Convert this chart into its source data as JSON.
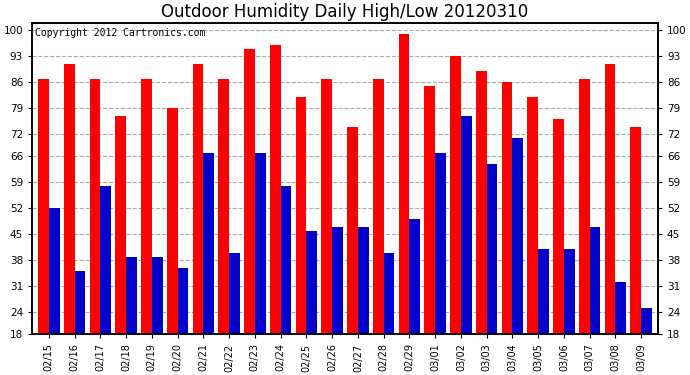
{
  "title": "Outdoor Humidity Daily High/Low 20120310",
  "copyright": "Copyright 2012 Cartronics.com",
  "dates": [
    "02/15",
    "02/16",
    "02/17",
    "02/18",
    "02/19",
    "02/20",
    "02/21",
    "02/22",
    "02/23",
    "02/24",
    "02/25",
    "02/26",
    "02/27",
    "02/28",
    "02/29",
    "03/01",
    "03/02",
    "03/03",
    "03/04",
    "03/05",
    "03/06",
    "03/07",
    "03/08",
    "03/09"
  ],
  "highs": [
    87,
    91,
    87,
    77,
    87,
    79,
    91,
    87,
    95,
    96,
    82,
    87,
    74,
    87,
    99,
    85,
    93,
    89,
    86,
    82,
    76,
    87,
    91,
    74
  ],
  "lows": [
    52,
    35,
    58,
    39,
    39,
    36,
    67,
    40,
    67,
    58,
    46,
    47,
    47,
    40,
    49,
    67,
    77,
    64,
    71,
    41,
    41,
    47,
    32,
    25
  ],
  "bar_color_high": "#ff0000",
  "bar_color_low": "#0000cc",
  "background_color": "#ffffff",
  "grid_color": "#aaaaaa",
  "yticks": [
    18,
    24,
    31,
    38,
    45,
    52,
    59,
    66,
    72,
    79,
    86,
    93,
    100
  ],
  "ymin": 18,
  "ymax": 102,
  "title_fontsize": 12,
  "tick_fontsize": 7.5,
  "copyright_fontsize": 7
}
